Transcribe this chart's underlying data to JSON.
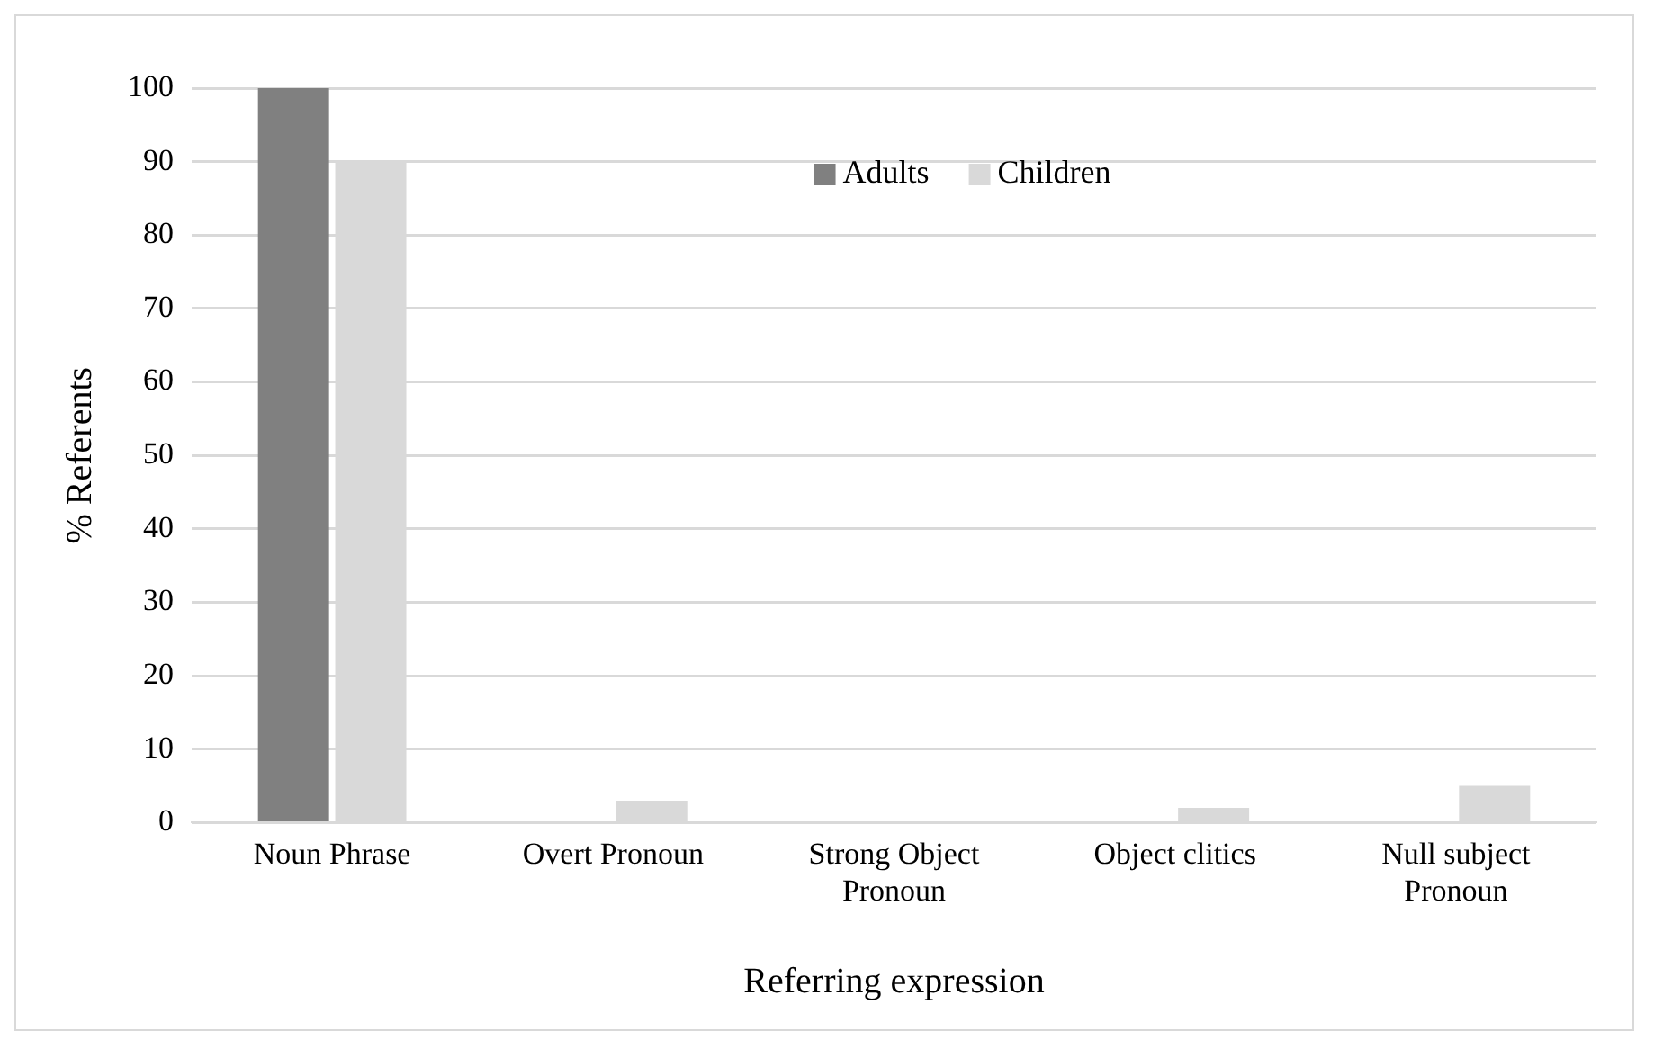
{
  "chart_data": {
    "type": "bar",
    "xlabel": "Referring expression",
    "ylabel": "% Referents",
    "categories": [
      "Noun Phrase",
      "Overt Pronoun",
      "Strong Object Pronoun",
      "Object clitics",
      "Null subject Pronoun"
    ],
    "series": [
      {
        "name": "Adults",
        "color": "#808080",
        "values": [
          100,
          0,
          0,
          0,
          0
        ]
      },
      {
        "name": "Children",
        "color": "#d9d9d9",
        "values": [
          90,
          3,
          0,
          2,
          5
        ]
      }
    ],
    "ylim": [
      0,
      100
    ],
    "yticks": [
      0,
      10,
      20,
      30,
      40,
      50,
      60,
      70,
      80,
      90,
      100
    ],
    "grid": "y",
    "legend": "top"
  }
}
